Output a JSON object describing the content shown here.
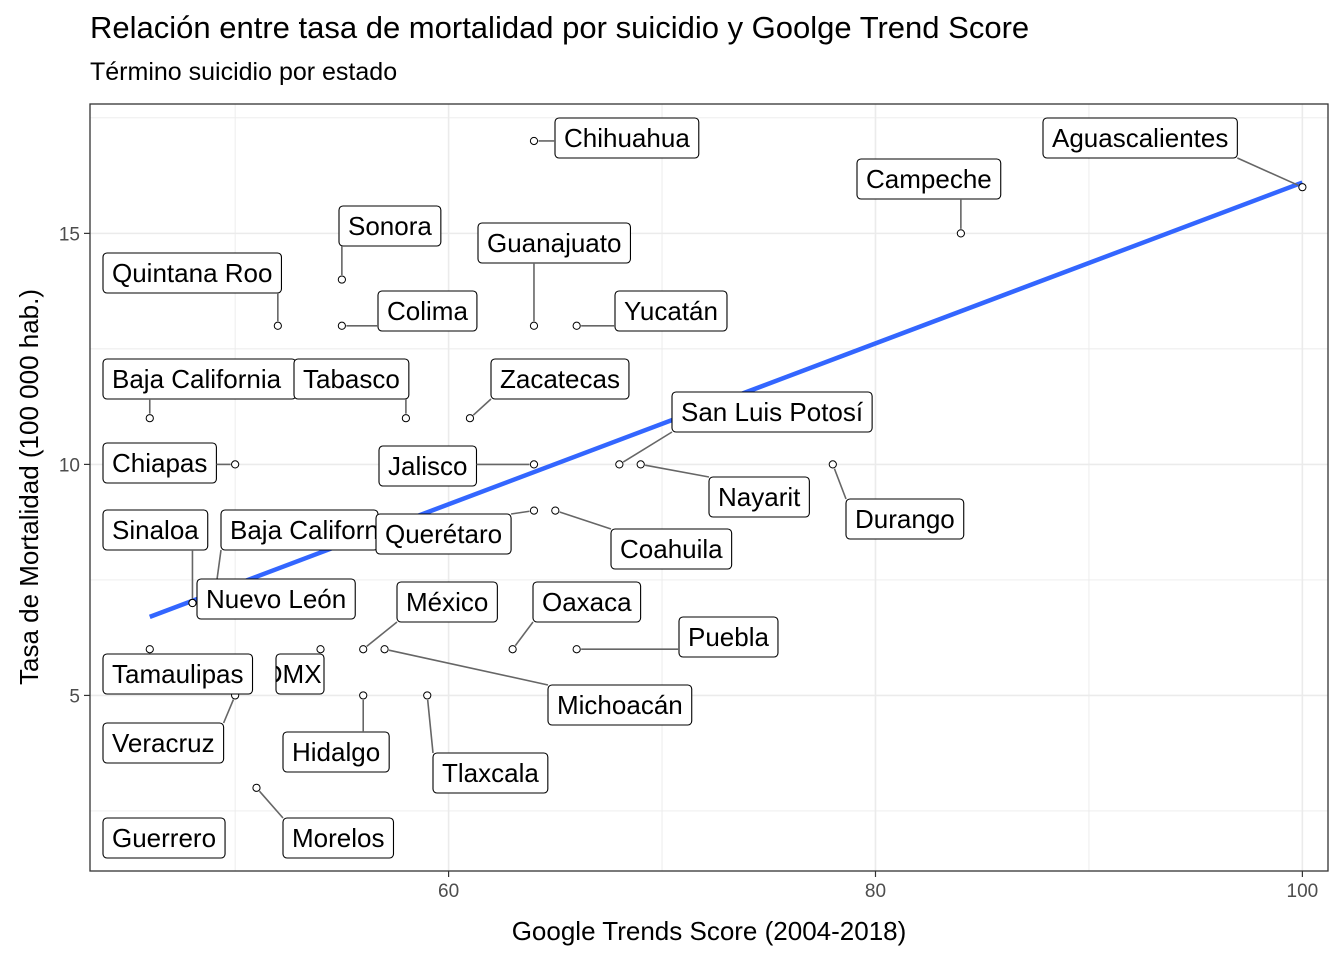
{
  "chart_data": {
    "type": "scatter",
    "title": "Relación entre tasa de mortalidad por suicidio y Goolge Trend Score",
    "subtitle": "Término suicidio por estado",
    "xlabel": "Google Trends Score (2004-2018)",
    "ylabel": "Tasa de Mortalidad   (100 000 hab.)",
    "xlim": [
      43.2,
      101.2
    ],
    "ylim": [
      1.2,
      17.8
    ],
    "xticks": [
      60,
      80,
      100
    ],
    "yticks": [
      5,
      10,
      15
    ],
    "grid": true,
    "colors": {
      "trend": "#3366ff",
      "grid": "#ebebeb",
      "panel_border": "#333333",
      "point_fill": "#ffffff",
      "segment": "#666666"
    },
    "trend_line": {
      "method": "linear",
      "x": [
        46,
        100
      ],
      "y": [
        6.7,
        16.1
      ]
    },
    "points": [
      {
        "label": "Aguascalientes",
        "x": 100,
        "y": 16
      },
      {
        "label": "Chihuahua",
        "x": 64,
        "y": 17
      },
      {
        "label": "Campeche",
        "x": 84,
        "y": 15
      },
      {
        "label": "Sonora",
        "x": 55,
        "y": 14
      },
      {
        "label": "Guanajuato",
        "x": 64,
        "y": 13
      },
      {
        "label": "Quintana Roo",
        "x": 52,
        "y": 13
      },
      {
        "label": "Colima",
        "x": 55,
        "y": 13
      },
      {
        "label": "Yucatán",
        "x": 66,
        "y": 13
      },
      {
        "label": "Baja California",
        "x": 46,
        "y": 11
      },
      {
        "label": "Tabasco",
        "x": 58,
        "y": 11
      },
      {
        "label": "Zacatecas",
        "x": 61,
        "y": 11
      },
      {
        "label": "San Luis Potosí",
        "x": 68,
        "y": 10
      },
      {
        "label": "Chiapas",
        "x": 50,
        "y": 10
      },
      {
        "label": "Jalisco",
        "x": 64,
        "y": 10
      },
      {
        "label": "Nayarit",
        "x": 69,
        "y": 10
      },
      {
        "label": "Durango",
        "x": 78,
        "y": 10
      },
      {
        "label": "Sinaloa",
        "x": 48,
        "y": 7
      },
      {
        "label": "Baja California Sur",
        "x": 49,
        "y": 7
      },
      {
        "label": "Querétaro",
        "x": 64,
        "y": 9
      },
      {
        "label": "Coahuila",
        "x": 65,
        "y": 9
      },
      {
        "label": "Nuevo León",
        "x": 48,
        "y": 7
      },
      {
        "label": "México",
        "x": 56,
        "y": 6
      },
      {
        "label": "Oaxaca",
        "x": 63,
        "y": 6
      },
      {
        "label": "Puebla",
        "x": 66,
        "y": 6
      },
      {
        "label": "Tamaulipas",
        "x": 46,
        "y": 6
      },
      {
        "label": "CDMX",
        "x": 54,
        "y": 6
      },
      {
        "label": "Michoacán",
        "x": 57,
        "y": 6
      },
      {
        "label": "Veracruz",
        "x": 50,
        "y": 5
      },
      {
        "label": "Hidalgo",
        "x": 56,
        "y": 5
      },
      {
        "label": "Tlaxcala",
        "x": 59,
        "y": 5
      },
      {
        "label": "Guerrero",
        "x": 47,
        "y": 2
      },
      {
        "label": "Morelos",
        "x": 51,
        "y": 3
      }
    ]
  }
}
